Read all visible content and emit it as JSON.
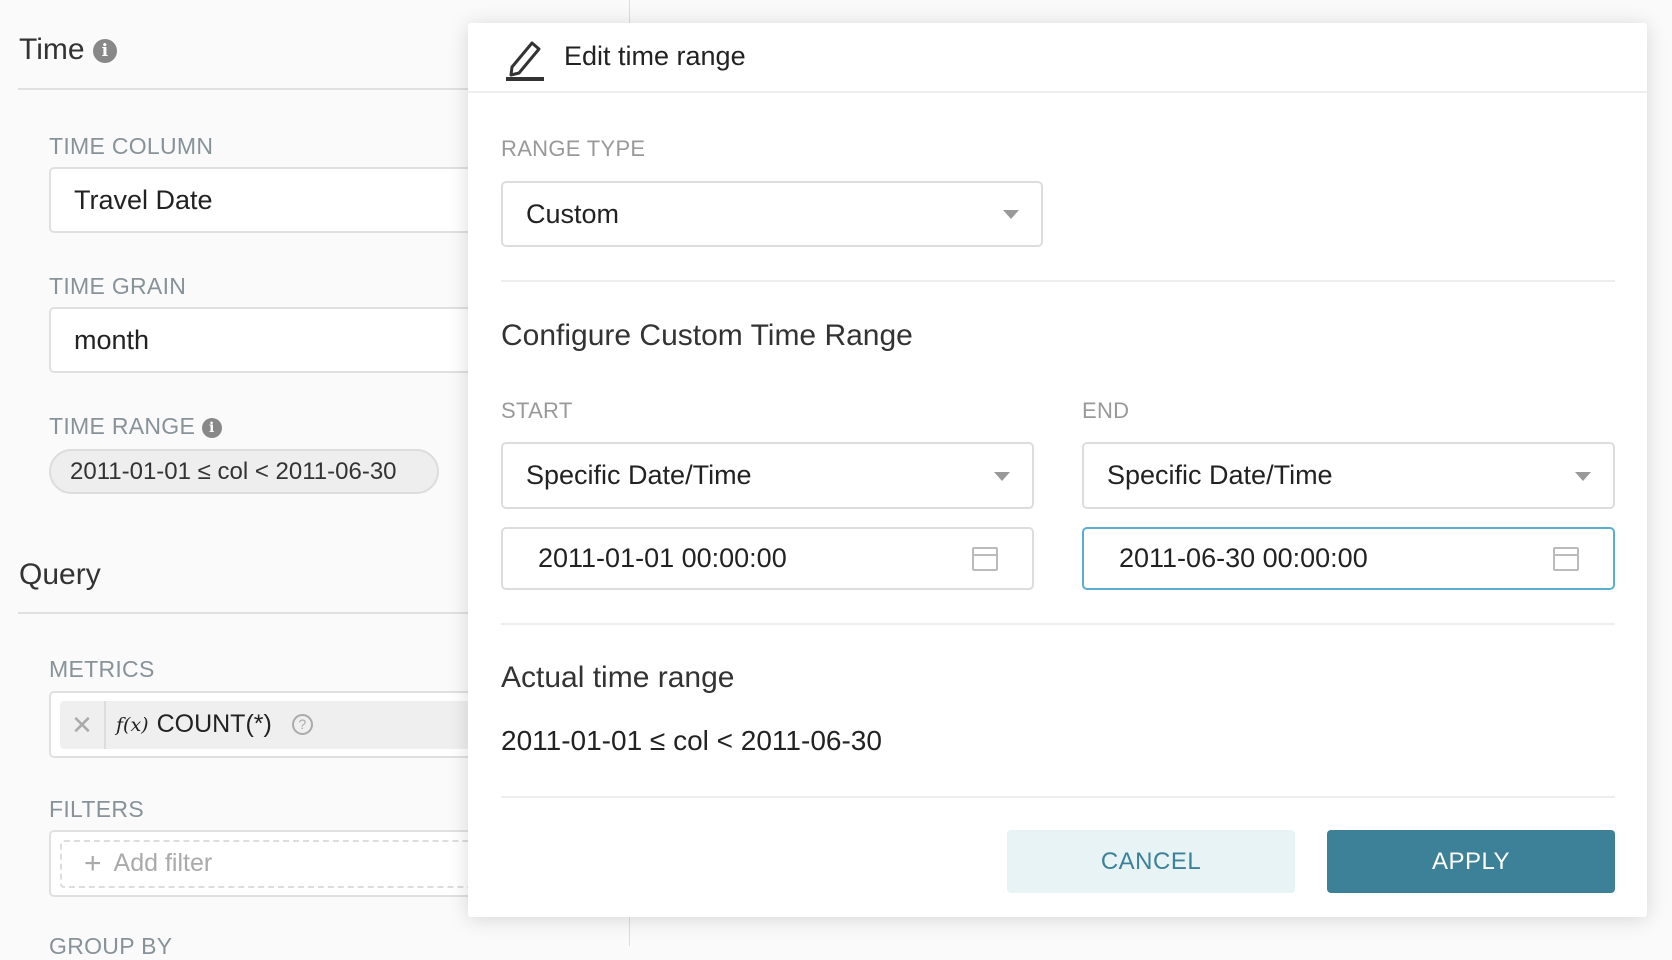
{
  "left_panel": {
    "time_section": {
      "title": "Time"
    },
    "time_column": {
      "label": "TIME COLUMN",
      "value": "Travel Date"
    },
    "time_grain": {
      "label": "TIME GRAIN",
      "value": "month"
    },
    "time_range": {
      "label": "TIME RANGE",
      "value": "2011-01-01 ≤ col < 2011-06-30"
    },
    "query_section": {
      "title": "Query"
    },
    "metrics": {
      "label": "METRICS",
      "fx": "f(x)",
      "value": "COUNT(*)"
    },
    "filters": {
      "label": "FILTERS",
      "placeholder": "Add filter"
    },
    "group_by": {
      "label": "GROUP BY"
    }
  },
  "modal": {
    "title": "Edit time range",
    "range_type": {
      "label": "RANGE TYPE",
      "value": "Custom"
    },
    "custom_heading": "Configure Custom Time Range",
    "start": {
      "label": "START",
      "mode": "Specific Date/Time",
      "value": "2011-01-01 00:00:00"
    },
    "end": {
      "label": "END",
      "mode": "Specific Date/Time",
      "value": "2011-06-30 00:00:00"
    },
    "actual_heading": "Actual time range",
    "actual_value": "2011-01-01 ≤ col < 2011-06-30",
    "cancel_label": "CANCEL",
    "apply_label": "APPLY",
    "colors": {
      "primary": "#3d8199",
      "cancel_bg": "#e8f3f6",
      "focus_border": "#5aafd0"
    }
  }
}
